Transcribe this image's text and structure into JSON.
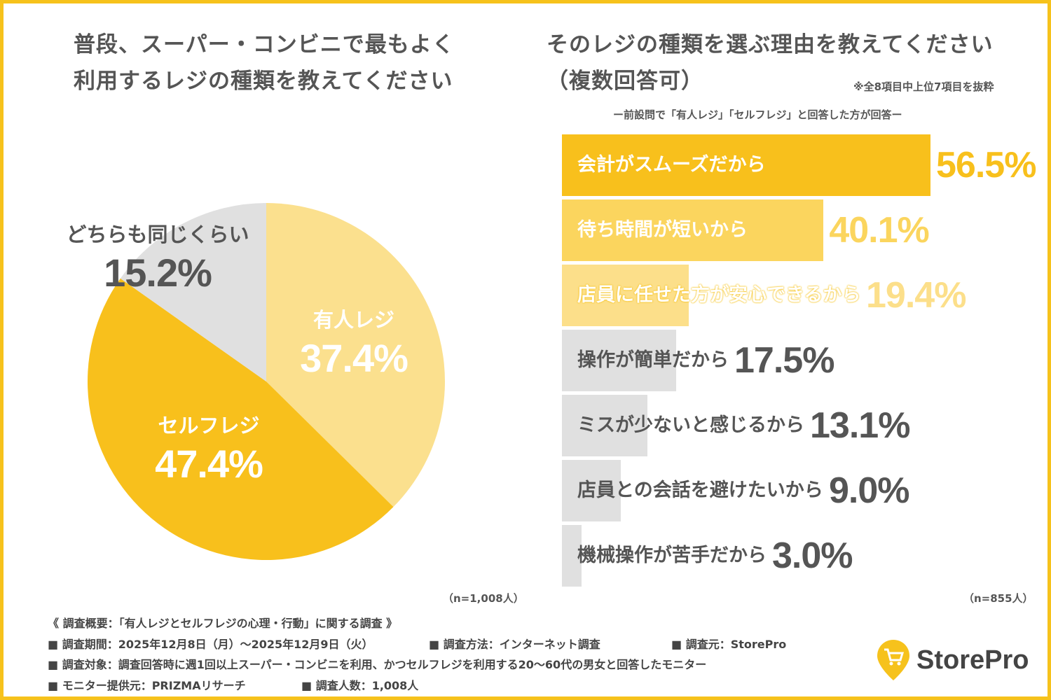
{
  "left": {
    "title_line1": "普段、スーパー・コンビニで最もよく",
    "title_line2": "利用するレジの種類を教えてください",
    "n_note": "（n=1,008人）"
  },
  "right": {
    "title_line1": "そのレジの種類を選ぶ理由を教えてください",
    "title_line2": "（複数回答可）",
    "extract_note": "※全8項目中上位7項目を抜粋",
    "sub_note": "ー前設問で「有人レジ」「セルフレジ」と回答した方が回答ー",
    "n_note": "（n=855人）"
  },
  "chart_data": [
    {
      "type": "pie",
      "title": "普段、スーパー・コンビニで最もよく利用するレジの種類を教えてください",
      "slices": [
        {
          "label": "有人レジ",
          "value": 37.4,
          "display": "37.4%",
          "color": "#fbe08e"
        },
        {
          "label": "セルフレジ",
          "value": 47.4,
          "display": "47.4%",
          "color": "#f8c01c"
        },
        {
          "label": "どちらも同じくらい",
          "value": 15.2,
          "display": "15.2%",
          "color": "#e0e0e0"
        }
      ]
    },
    {
      "type": "bar",
      "orientation": "horizontal",
      "title": "そのレジの種類を選ぶ理由を教えてください（複数回答可）",
      "categories": [
        "会計がスムーズだから",
        "待ち時間が短いから",
        "店員に任せた方が安心できるから",
        "操作が簡単だから",
        "ミスが少ないと感じるから",
        "店員との会話を避けたいから",
        "機械操作が苦手だから"
      ],
      "values": [
        56.5,
        40.1,
        19.4,
        17.5,
        13.1,
        9.0,
        3.0
      ],
      "display": [
        "56.5%",
        "40.1%",
        "19.4%",
        "17.5%",
        "13.1%",
        "9.0%",
        "3.0%"
      ],
      "colors": [
        "#f8c01c",
        "#fbd55e",
        "#fcdf8a",
        "#e0e0e0",
        "#e0e0e0",
        "#e0e0e0",
        "#e0e0e0"
      ],
      "value_colors": [
        "#f8c01c",
        "#fbd55e",
        "#fcdf8a",
        "#555555",
        "#555555",
        "#555555",
        "#555555"
      ]
    }
  ],
  "footer": {
    "summary": "《 調査概要：「有人レジとセルフレジの心理・行動」に関する調査 》",
    "period": "■ 調査期間：2025年12月8日（月）〜2025年12月9日（火）",
    "method": "■ 調査方法：インターネット調査",
    "source": "■ 調査元：StorePro",
    "target": "■ 調査対象：調査回答時に週1回以上スーパー・コンビニを利用、かつセルフレジを利用する20〜60代の男女と回答したモニター",
    "provider": "■ モニター提供元：PRIZMAリサーチ",
    "count": "■ 調査人数：1,008人"
  },
  "logo": {
    "text": "StorePro",
    "icon": "shopping-cart-pin-icon",
    "color": "#f6c21c"
  },
  "frame_color": "#f6c21c"
}
